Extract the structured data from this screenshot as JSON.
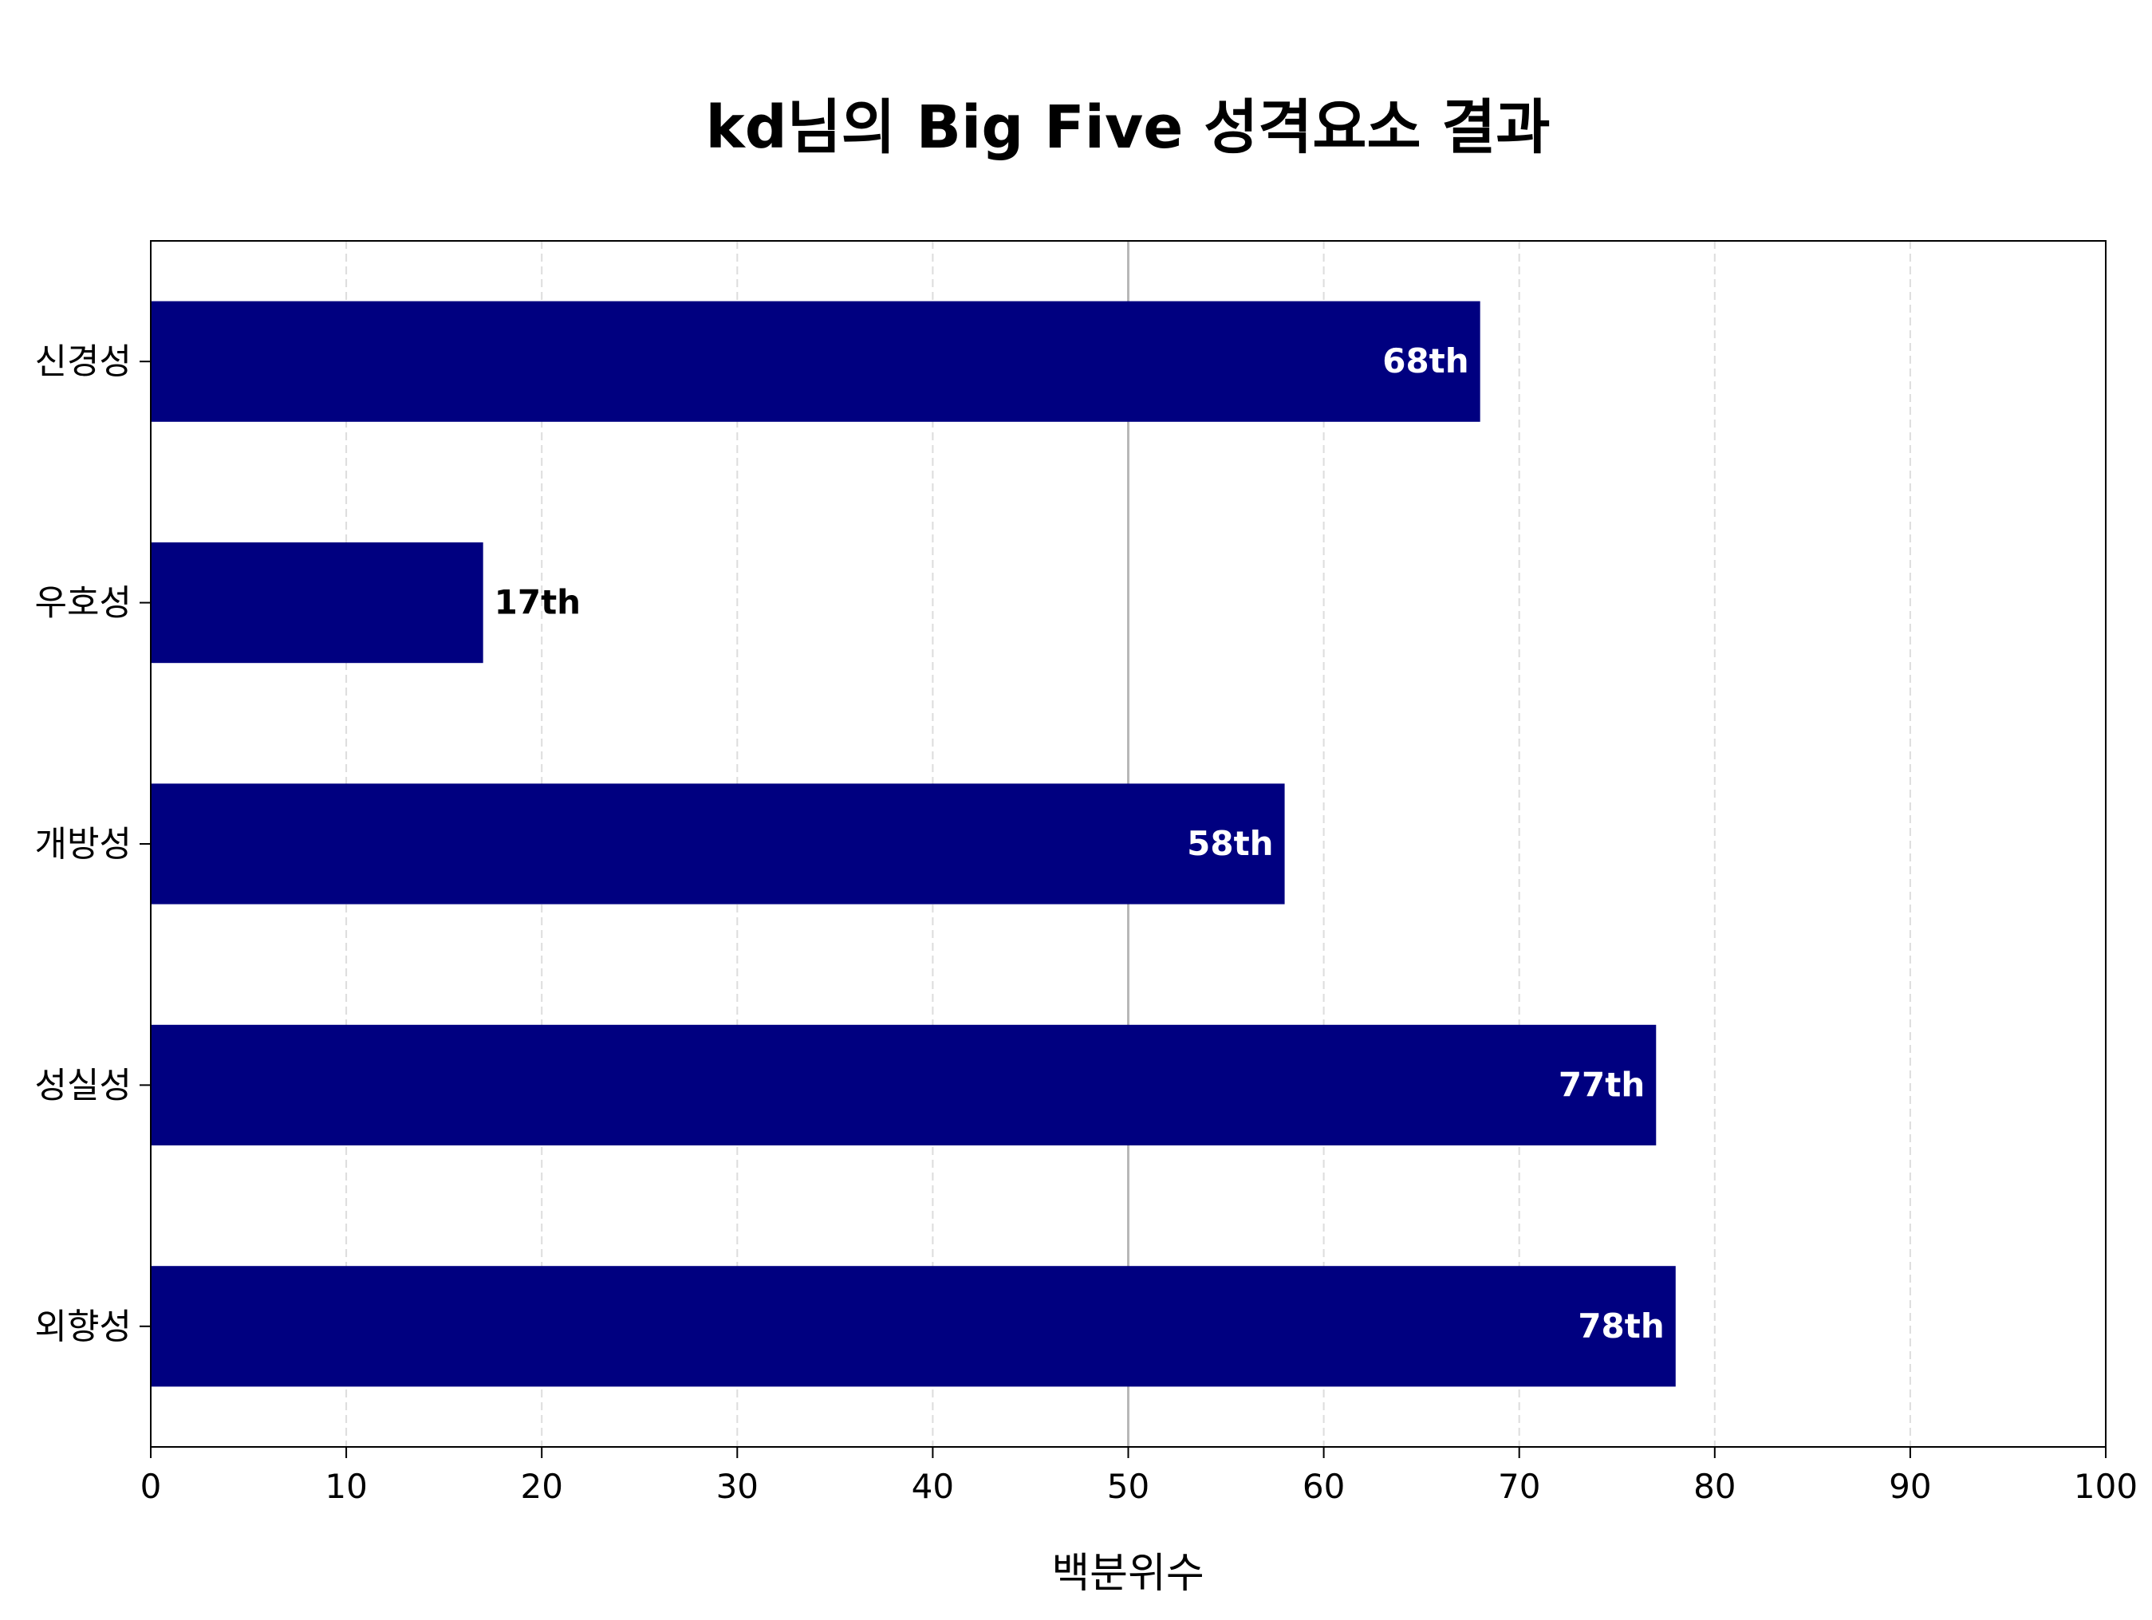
{
  "chart_data": {
    "type": "bar",
    "orientation": "horizontal",
    "title": "kd님의 Big Five 성격요소 결과",
    "xlabel": "백분위수",
    "ylabel": "",
    "categories": [
      "신경성",
      "우호성",
      "개방성",
      "성실성",
      "외향성"
    ],
    "values": [
      68,
      17,
      58,
      77,
      78
    ],
    "data_labels": [
      "68th",
      "17th",
      "58th",
      "77th",
      "78th"
    ],
    "xlim": [
      0,
      100
    ],
    "xticks": [
      "0",
      "10",
      "20",
      "30",
      "40",
      "50",
      "60",
      "70",
      "80",
      "90",
      "100"
    ],
    "reference_line": 50,
    "grid": "vertical dashed",
    "bar_color": "#000080",
    "label_inside_color": "#ffffff",
    "label_outside_color": "#000000"
  }
}
